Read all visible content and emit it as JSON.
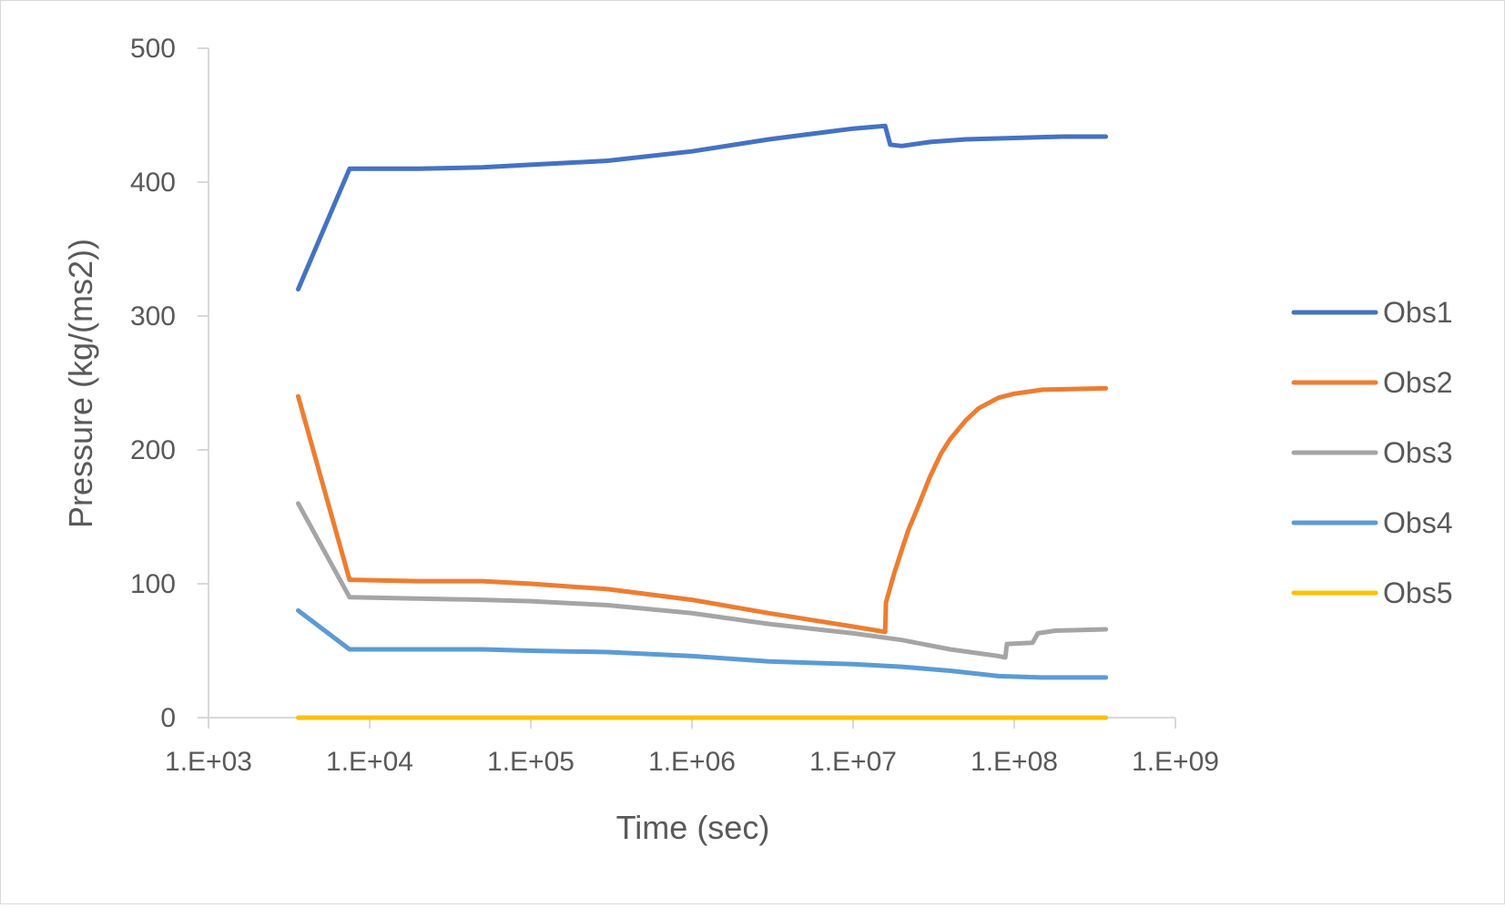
{
  "chart_data": {
    "type": "line",
    "title": "",
    "xlabel": "Time (sec)",
    "ylabel": "Pressure (kg/(ms2))",
    "x_scale": "log",
    "xlim": [
      1000,
      1000000000
    ],
    "ylim": [
      0,
      500
    ],
    "x_tick_labels": [
      "1.E+03",
      "1.E+04",
      "1.E+05",
      "1.E+06",
      "1.E+07",
      "1.E+08",
      "1.E+09"
    ],
    "x_tick_values": [
      1000,
      10000,
      100000,
      1000000,
      10000000,
      100000000,
      1000000000
    ],
    "y_ticks": [
      0,
      100,
      200,
      300,
      400,
      500
    ],
    "grid": false,
    "legend_position": "right",
    "series": [
      {
        "name": "Obs1",
        "color": "#4472c4",
        "points": [
          [
            3600,
            320
          ],
          [
            7500,
            410
          ],
          [
            20000,
            410
          ],
          [
            50000,
            411
          ],
          [
            100000,
            413
          ],
          [
            300000,
            416
          ],
          [
            1000000,
            423
          ],
          [
            3000000,
            432
          ],
          [
            10000000,
            440
          ],
          [
            15800000,
            442
          ],
          [
            17000000,
            428
          ],
          [
            20000000,
            427
          ],
          [
            30000000,
            430
          ],
          [
            50000000,
            432
          ],
          [
            100000000,
            433
          ],
          [
            200000000,
            434
          ],
          [
            370000000,
            434
          ]
        ]
      },
      {
        "name": "Obs2",
        "color": "#ed7d31",
        "points": [
          [
            3600,
            240
          ],
          [
            7500,
            103
          ],
          [
            20000,
            102
          ],
          [
            50000,
            102
          ],
          [
            100000,
            100
          ],
          [
            300000,
            96
          ],
          [
            1000000,
            88
          ],
          [
            3000000,
            78
          ],
          [
            10000000,
            68
          ],
          [
            15800000,
            64
          ],
          [
            16000000,
            86
          ],
          [
            18000000,
            108
          ],
          [
            20000000,
            125
          ],
          [
            22000000,
            140
          ],
          [
            25000000,
            156
          ],
          [
            30000000,
            180
          ],
          [
            35000000,
            197
          ],
          [
            40000000,
            208
          ],
          [
            50000000,
            222
          ],
          [
            60000000,
            231
          ],
          [
            80000000,
            239
          ],
          [
            100000000,
            242
          ],
          [
            150000000,
            245
          ],
          [
            370000000,
            246
          ]
        ]
      },
      {
        "name": "Obs3",
        "color": "#a5a5a5",
        "points": [
          [
            3600,
            160
          ],
          [
            7500,
            90
          ],
          [
            20000,
            89
          ],
          [
            50000,
            88
          ],
          [
            100000,
            87
          ],
          [
            300000,
            84
          ],
          [
            1000000,
            78
          ],
          [
            3000000,
            70
          ],
          [
            10000000,
            63
          ],
          [
            20000000,
            58
          ],
          [
            40000000,
            51
          ],
          [
            80000000,
            46
          ],
          [
            88000000,
            45
          ],
          [
            90000000,
            55
          ],
          [
            130000000,
            56
          ],
          [
            140000000,
            63
          ],
          [
            180000000,
            65
          ],
          [
            370000000,
            66
          ]
        ]
      },
      {
        "name": "Obs4",
        "color": "#5b9bd5",
        "points": [
          [
            3600,
            80
          ],
          [
            7500,
            51
          ],
          [
            20000,
            51
          ],
          [
            50000,
            51
          ],
          [
            100000,
            50
          ],
          [
            300000,
            49
          ],
          [
            1000000,
            46
          ],
          [
            3000000,
            42
          ],
          [
            10000000,
            40
          ],
          [
            20000000,
            38
          ],
          [
            40000000,
            35
          ],
          [
            80000000,
            31
          ],
          [
            150000000,
            30
          ],
          [
            370000000,
            30
          ]
        ]
      },
      {
        "name": "Obs5",
        "color": "#ffc000",
        "points": [
          [
            3600,
            0
          ],
          [
            370000000,
            0
          ]
        ]
      }
    ]
  }
}
